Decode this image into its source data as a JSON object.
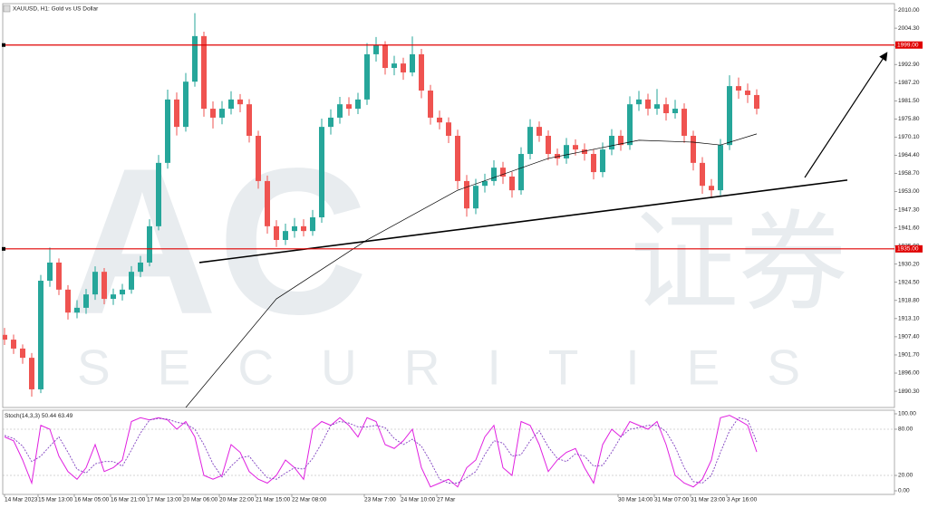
{
  "chart_data": {
    "type": "candlestick",
    "title": "XAUUSD, H1: Gold vs US Dollar",
    "up_color": "#26a69a",
    "down_color": "#ef5350",
    "xlim": [
      -0.2,
      98.2
    ],
    "ylim": [
      1885.2,
      2012.0
    ],
    "yticks": [
      {
        "value": 2010.0,
        "label": "2010.00"
      },
      {
        "value": 2004.3,
        "label": "2004.30"
      },
      {
        "value": 1998.6,
        "label": "1998.60"
      },
      {
        "value": 1992.9,
        "label": "1992.90"
      },
      {
        "value": 1987.2,
        "label": "1987.20"
      },
      {
        "value": 1981.5,
        "label": "1981.50"
      },
      {
        "value": 1975.8,
        "label": "1975.80"
      },
      {
        "value": 1970.1,
        "label": "1970.10"
      },
      {
        "value": 1964.4,
        "label": "1964.40"
      },
      {
        "value": 1958.7,
        "label": "1958.70"
      },
      {
        "value": 1953.0,
        "label": "1953.00"
      },
      {
        "value": 1947.3,
        "label": "1947.30"
      },
      {
        "value": 1941.6,
        "label": "1941.60"
      },
      {
        "value": 1935.9,
        "label": "1935.90"
      },
      {
        "value": 1930.2,
        "label": "1930.20"
      },
      {
        "value": 1924.5,
        "label": "1924.50"
      },
      {
        "value": 1918.8,
        "label": "1918.80"
      },
      {
        "value": 1913.1,
        "label": "1913.10"
      },
      {
        "value": 1907.4,
        "label": "1907.40"
      },
      {
        "value": 1901.7,
        "label": "1901.70"
      },
      {
        "value": 1896.0,
        "label": "1896.00"
      },
      {
        "value": 1890.3,
        "label": "1890.30"
      }
    ],
    "xticks": [
      {
        "value": 0,
        "label": "14 Mar 2023"
      },
      {
        "value": 3.7,
        "label": "15 Mar 13:00"
      },
      {
        "value": 7.7,
        "label": "16 Mar 05:00"
      },
      {
        "value": 11.7,
        "label": "16 Mar 21:00"
      },
      {
        "value": 15.7,
        "label": "17 Mar 13:00"
      },
      {
        "value": 19.7,
        "label": "20 Mar 06:00"
      },
      {
        "value": 23.7,
        "label": "20 Mar 22:00"
      },
      {
        "value": 27.7,
        "label": "21 Mar 15:00"
      },
      {
        "value": 31.7,
        "label": "22 Mar 08:00"
      },
      {
        "value": 39.7,
        "label": "23 Mar 7:00"
      },
      {
        "value": 43.7,
        "label": "24 Mar 10:00"
      },
      {
        "value": 47.7,
        "label": "27 Mar"
      },
      {
        "value": 67.7,
        "label": "30 Mar 14:00"
      },
      {
        "value": 71.7,
        "label": "31 Mar 07:00"
      },
      {
        "value": 75.7,
        "label": "31 Mar 23:00"
      },
      {
        "value": 79.7,
        "label": "3 Apr 16:00"
      }
    ],
    "open": [
      1908.0,
      1906.5,
      1903.7,
      1900.8,
      1890.9,
      1925.0,
      1930.7,
      1922.2,
      1915.0,
      1916.5,
      1920.7,
      1927.8,
      1919.3,
      1920.7,
      1922.2,
      1927.8,
      1930.7,
      1942.1,
      1962.0,
      1981.9,
      1973.3,
      1987.5,
      2001.8,
      1979.0,
      1976.2,
      1979.0,
      1981.9,
      1980.4,
      1970.5,
      1956.3,
      1942.1,
      1937.8,
      1940.6,
      1942.1,
      1940.6,
      1944.9,
      1973.3,
      1976.2,
      1980.4,
      1979.0,
      1981.9,
      1996.1,
      1998.9,
      1991.8,
      1993.2,
      1990.4,
      1996.1,
      1984.7,
      1976.2,
      1974.7,
      1970.5,
      1956.3,
      1947.7,
      1954.8,
      1956.3,
      1960.5,
      1957.7,
      1953.4,
      1964.8,
      1973.3,
      1970.5,
      1964.8,
      1963.4,
      1967.6,
      1966.2,
      1964.8,
      1959.1,
      1966.2,
      1970.5,
      1967.6,
      1980.4,
      1981.9,
      1979.0,
      1980.4,
      1977.6,
      1979.0,
      1970.5,
      1962.0,
      1954.8,
      1953.4,
      1967.6,
      1986.1,
      1984.7,
      1983.3
    ],
    "high": [
      1910.2,
      1908.1,
      1905.0,
      1902.3,
      1926.8,
      1935.4,
      1932.0,
      1923.6,
      1918.9,
      1922.4,
      1929.5,
      1929.0,
      1922.5,
      1924.0,
      1929.6,
      1932.8,
      1944.3,
      1964.5,
      1985.0,
      1984.1,
      1990.2,
      2009.0,
      2003.2,
      1981.3,
      1981.4,
      1984.5,
      1983.6,
      1982.0,
      1972.1,
      1958.0,
      1944.0,
      1942.9,
      1944.7,
      1944.3,
      1947.2,
      1975.9,
      1978.8,
      1982.7,
      1982.6,
      1984.0,
      1999.6,
      2001.5,
      2000.2,
      1995.6,
      1995.0,
      2001.7,
      1997.8,
      1986.5,
      1978.4,
      1976.3,
      1972.4,
      1958.2,
      1957.0,
      1958.6,
      1962.8,
      1962.3,
      1959.2,
      1966.9,
      1975.7,
      1975.0,
      1972.2,
      1966.5,
      1969.8,
      1969.4,
      1968.1,
      1966.3,
      1968.4,
      1972.6,
      1972.3,
      1982.9,
      1984.6,
      1983.7,
      1985.2,
      1982.5,
      1981.8,
      1980.7,
      1972.1,
      1963.8,
      1956.9,
      1969.5,
      1989.5,
      1988.8,
      1986.9,
      1985.1
    ],
    "low": [
      1904.8,
      1902.0,
      1898.9,
      1888.6,
      1889.7,
      1923.1,
      1920.5,
      1912.8,
      1913.2,
      1914.6,
      1919.0,
      1917.6,
      1917.4,
      1918.8,
      1920.9,
      1926.1,
      1929.5,
      1940.8,
      1960.2,
      1970.6,
      1971.8,
      1985.9,
      1976.5,
      1972.8,
      1974.1,
      1977.2,
      1977.9,
      1968.4,
      1953.9,
      1939.8,
      1935.6,
      1936.2,
      1938.5,
      1938.9,
      1939.1,
      1943.2,
      1970.9,
      1974.3,
      1976.8,
      1977.3,
      1980.2,
      1993.8,
      1989.7,
      1989.5,
      1988.1,
      1989.2,
      1982.3,
      1974.0,
      1972.5,
      1968.2,
      1953.7,
      1945.1,
      1945.9,
      1952.7,
      1954.9,
      1955.4,
      1951.1,
      1952.0,
      1963.1,
      1968.6,
      1962.9,
      1961.2,
      1961.7,
      1964.3,
      1962.7,
      1956.8,
      1957.5,
      1964.4,
      1965.8,
      1966.1,
      1978.3,
      1976.9,
      1977.1,
      1975.3,
      1975.9,
      1968.3,
      1959.6,
      1952.3,
      1950.9,
      1951.8,
      1966.0,
      1982.1,
      1980.8,
      1977.2
    ],
    "close": [
      1906.5,
      1903.7,
      1900.8,
      1890.9,
      1925.0,
      1930.7,
      1922.2,
      1915.0,
      1916.5,
      1920.7,
      1927.8,
      1919.3,
      1920.7,
      1922.2,
      1927.8,
      1930.7,
      1942.1,
      1962.0,
      1981.9,
      1973.3,
      1987.5,
      2001.8,
      1979.0,
      1976.2,
      1979.0,
      1981.9,
      1980.4,
      1970.5,
      1956.3,
      1942.1,
      1937.8,
      1940.6,
      1942.1,
      1940.6,
      1944.9,
      1973.3,
      1976.2,
      1980.4,
      1979.0,
      1981.9,
      1996.1,
      1998.9,
      1991.8,
      1993.2,
      1990.4,
      1996.1,
      1984.7,
      1976.2,
      1974.7,
      1970.5,
      1956.3,
      1947.7,
      1954.8,
      1956.3,
      1960.5,
      1957.7,
      1953.4,
      1964.8,
      1973.3,
      1970.5,
      1964.8,
      1963.4,
      1967.6,
      1966.2,
      1964.8,
      1959.1,
      1966.2,
      1970.5,
      1967.6,
      1980.4,
      1981.9,
      1979.0,
      1980.4,
      1977.6,
      1979.0,
      1970.5,
      1962.0,
      1954.8,
      1953.4,
      1967.6,
      1986.1,
      1984.7,
      1983.3,
      1979.0
    ],
    "ma": {
      "color": "#000000",
      "x": [
        20,
        30,
        40,
        50,
        60,
        70,
        76,
        79,
        83
      ],
      "values": [
        1885.2,
        1919.3,
        1937.8,
        1953.4,
        1963.4,
        1969.1,
        1968.5,
        1967.6,
        1971.1
      ]
    },
    "hline_color": "#e00000",
    "hlines": [
      {
        "value": 1999.0,
        "label": "1999.00"
      },
      {
        "value": 1935.0,
        "label": "1935.00"
      }
    ],
    "trendline": {
      "x": [
        21.5,
        93
      ],
      "values": [
        1930.7,
        1956.6
      ]
    },
    "arrow": {
      "x": [
        88.3,
        97.3
      ],
      "values": [
        1957.4,
        1996.3
      ]
    },
    "watermark": {
      "logo": "AC",
      "text": "证券",
      "subtext": "SECURITIES"
    },
    "stoch": {
      "title": "Stoch(14,3,3)",
      "k_color": "#e020e0",
      "d_color": "#8040c0",
      "ylim": [
        -4.7,
        104.7
      ],
      "yticks": [
        {
          "value": 100,
          "label": "100.00"
        },
        {
          "value": 80,
          "label": "80.00"
        },
        {
          "value": 20,
          "label": "20.00"
        },
        {
          "value": 0,
          "label": "0.00"
        }
      ],
      "levels": [
        80,
        20
      ],
      "k": [
        70,
        65,
        40,
        10,
        85,
        80,
        45,
        25,
        15,
        30,
        60,
        25,
        30,
        40,
        90,
        95,
        92,
        95,
        92,
        80,
        90,
        70,
        20,
        15,
        20,
        60,
        50,
        25,
        15,
        10,
        20,
        40,
        30,
        15,
        80,
        90,
        85,
        95,
        85,
        70,
        95,
        90,
        60,
        55,
        65,
        80,
        30,
        5,
        10,
        15,
        5,
        30,
        40,
        70,
        85,
        30,
        20,
        90,
        85,
        60,
        25,
        40,
        50,
        55,
        30,
        10,
        60,
        80,
        70,
        90,
        85,
        80,
        90,
        60,
        20,
        10,
        5,
        15,
        40,
        95,
        98,
        92,
        85,
        50.44
      ],
      "d": [
        72,
        68,
        58,
        38,
        45,
        58,
        70,
        50,
        28,
        23,
        35,
        38,
        38,
        32,
        53,
        75,
        92,
        94,
        93,
        89,
        87,
        80,
        60,
        35,
        18,
        32,
        43,
        45,
        30,
        17,
        15,
        23,
        30,
        28,
        42,
        62,
        85,
        90,
        88,
        83,
        83,
        85,
        82,
        68,
        60,
        67,
        58,
        38,
        15,
        10,
        10,
        17,
        25,
        47,
        65,
        62,
        45,
        47,
        65,
        78,
        57,
        42,
        38,
        48,
        45,
        32,
        33,
        50,
        70,
        80,
        82,
        85,
        85,
        77,
        57,
        30,
        12,
        10,
        20,
        50,
        78,
        95,
        92,
        63.49
      ]
    }
  }
}
